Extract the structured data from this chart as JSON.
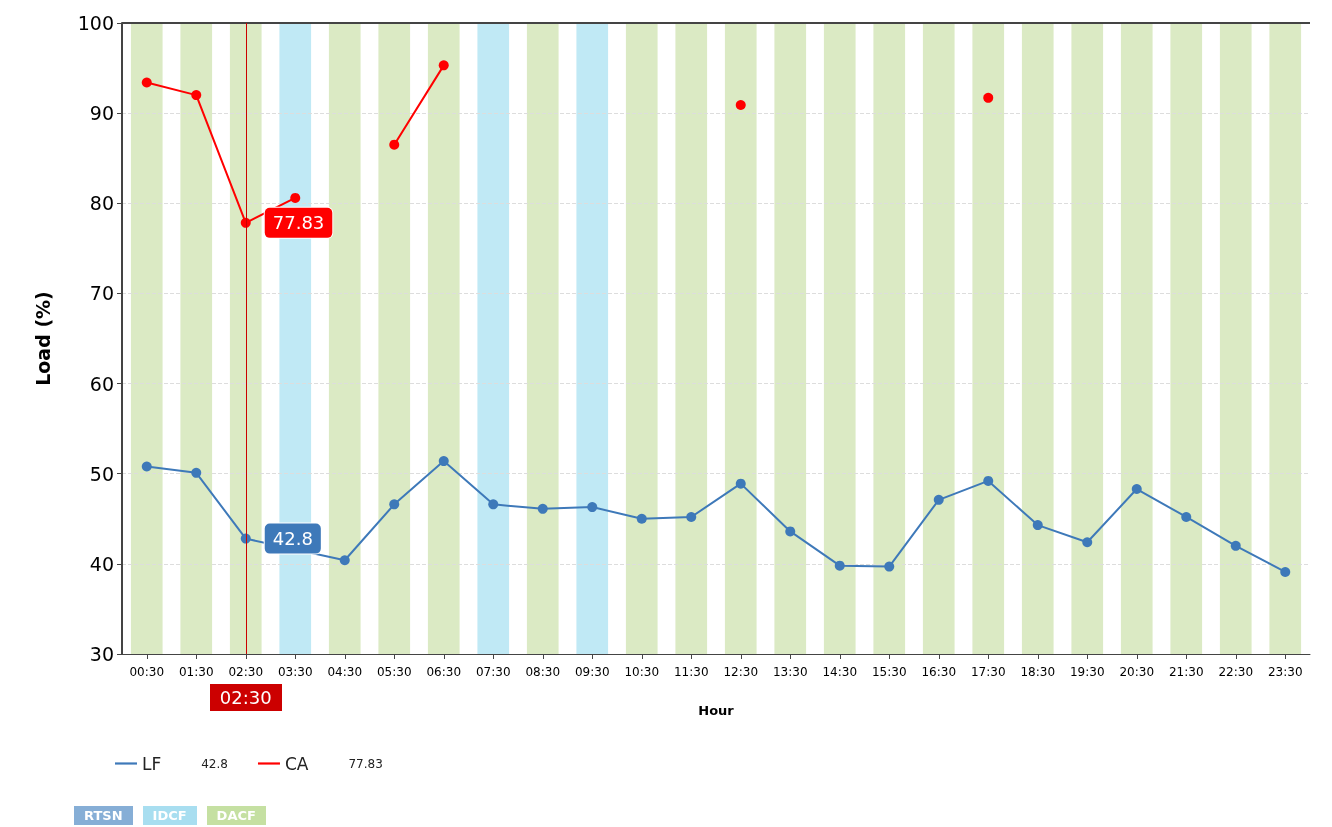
{
  "chart_data": {
    "type": "line",
    "xlabel": "Hour",
    "ylabel": "Load (%)",
    "categories": [
      "00:30",
      "01:30",
      "02:30",
      "03:30",
      "04:30",
      "05:30",
      "06:30",
      "07:30",
      "08:30",
      "09:30",
      "10:30",
      "11:30",
      "12:30",
      "13:30",
      "14:30",
      "15:30",
      "16:30",
      "17:30",
      "18:30",
      "19:30",
      "20:30",
      "21:30",
      "22:30",
      "23:30"
    ],
    "series": [
      {
        "name": "LF",
        "color": "#3e79b9",
        "values": [
          50.8,
          50.1,
          42.8,
          null,
          40.4,
          46.6,
          51.4,
          46.6,
          46.1,
          46.3,
          45.0,
          45.2,
          48.9,
          43.6,
          39.8,
          39.7,
          47.1,
          49.2,
          44.3,
          42.4,
          48.3,
          45.2,
          42.0,
          39.1
        ],
        "value_labels": [
          null,
          null,
          "42.8",
          null,
          null,
          null,
          null,
          null,
          null,
          null,
          null,
          null,
          null,
          null,
          null,
          null,
          null,
          null,
          null,
          null,
          null,
          null,
          null,
          null
        ]
      },
      {
        "name": "CA",
        "color": "#ff0000",
        "values": [
          93.4,
          92.0,
          77.83,
          80.6,
          null,
          86.5,
          95.3,
          null,
          null,
          null,
          null,
          null,
          90.9,
          null,
          null,
          null,
          null,
          91.7,
          null,
          null,
          null,
          null,
          null,
          null
        ],
        "value_labels": [
          null,
          null,
          "77.83",
          null,
          null,
          null,
          null,
          null,
          null,
          null,
          null,
          null,
          null,
          null,
          null,
          null,
          null,
          null,
          null,
          null,
          null,
          null,
          null,
          null
        ]
      }
    ],
    "ylim": [
      30,
      100
    ],
    "yticks": [
      30,
      40,
      50,
      60,
      70,
      80,
      90,
      100
    ],
    "grid": "y",
    "legend": "bottom left",
    "marker": "circle",
    "line_style": "solid",
    "ref_lines": [
      {
        "axis": "x",
        "value": "02:30",
        "label": "02:30",
        "color": "#cc0000"
      }
    ],
    "bands": [
      {
        "axis": "x",
        "from": "00:30",
        "to": "00:30",
        "color": "#dbeac4"
      },
      {
        "axis": "x",
        "from": "01:30",
        "to": "01:30",
        "color": "#dbeac4"
      },
      {
        "axis": "x",
        "from": "02:30",
        "to": "02:30",
        "color": "#dbeac4"
      },
      {
        "axis": "x",
        "from": "03:30",
        "to": "03:30",
        "color": "#c0e9f5"
      },
      {
        "axis": "x",
        "from": "04:30",
        "to": "04:30",
        "color": "#dbeac4"
      },
      {
        "axis": "x",
        "from": "05:30",
        "to": "05:30",
        "color": "#dbeac4"
      },
      {
        "axis": "x",
        "from": "06:30",
        "to": "06:30",
        "color": "#dbeac4"
      },
      {
        "axis": "x",
        "from": "07:30",
        "to": "07:30",
        "color": "#c0e9f5"
      },
      {
        "axis": "x",
        "from": "08:30",
        "to": "08:30",
        "color": "#dbeac4"
      },
      {
        "axis": "x",
        "from": "09:30",
        "to": "09:30",
        "color": "#c0e9f5"
      },
      {
        "axis": "x",
        "from": "10:30",
        "to": "10:30",
        "color": "#dbeac4"
      },
      {
        "axis": "x",
        "from": "11:30",
        "to": "11:30",
        "color": "#dbeac4"
      },
      {
        "axis": "x",
        "from": "12:30",
        "to": "12:30",
        "color": "#dbeac4"
      },
      {
        "axis": "x",
        "from": "13:30",
        "to": "13:30",
        "color": "#dbeac4"
      },
      {
        "axis": "x",
        "from": "14:30",
        "to": "14:30",
        "color": "#dbeac4"
      },
      {
        "axis": "x",
        "from": "15:30",
        "to": "15:30",
        "color": "#dbeac4"
      },
      {
        "axis": "x",
        "from": "16:30",
        "to": "16:30",
        "color": "#dbeac4"
      },
      {
        "axis": "x",
        "from": "17:30",
        "to": "17:30",
        "color": "#dbeac4"
      },
      {
        "axis": "x",
        "from": "18:30",
        "to": "18:30",
        "color": "#dbeac4"
      },
      {
        "axis": "x",
        "from": "19:30",
        "to": "19:30",
        "color": "#dbeac4"
      },
      {
        "axis": "x",
        "from": "20:30",
        "to": "20:30",
        "color": "#dbeac4"
      },
      {
        "axis": "x",
        "from": "21:30",
        "to": "21:30",
        "color": "#dbeac4"
      },
      {
        "axis": "x",
        "from": "22:30",
        "to": "22:30",
        "color": "#dbeac4"
      },
      {
        "axis": "x",
        "from": "23:30",
        "to": "23:30",
        "color": "#dbeac4"
      }
    ],
    "annotations": [
      "RTSN",
      "IDCF",
      "DACF"
    ]
  }
}
